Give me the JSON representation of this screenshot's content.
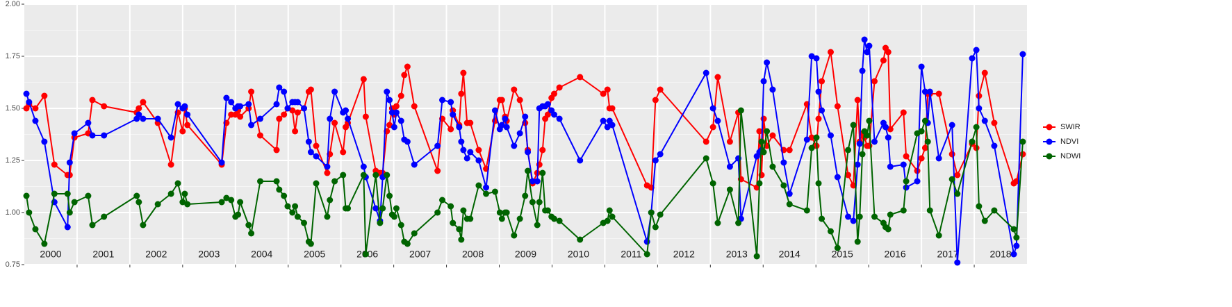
{
  "chart_data": {
    "type": "line",
    "x": [
      2000.04,
      2000.09,
      2000.21,
      2000.38,
      2000.57,
      2000.82,
      2000.86,
      2000.95,
      2001.21,
      2001.29,
      2001.51,
      2002.13,
      2002.17,
      2002.25,
      2002.53,
      2002.78,
      2002.91,
      2003.0,
      2003.04,
      2003.09,
      2003.74,
      2003.83,
      2003.92,
      2004.0,
      2004.05,
      2004.09,
      2004.25,
      2004.3,
      2004.47,
      2004.78,
      2004.83,
      2004.92,
      2004.99,
      2005.08,
      2005.13,
      2005.18,
      2005.3,
      2005.39,
      2005.43,
      2005.53,
      2005.74,
      2005.79,
      2005.88,
      2006.04,
      2006.09,
      2006.13,
      2006.43,
      2006.47,
      2006.66,
      2006.74,
      2006.79,
      2006.87,
      2006.92,
      2006.97,
      2007.01,
      2007.05,
      2007.14,
      2007.2,
      2007.26,
      2007.39,
      2007.83,
      2007.92,
      2008.08,
      2008.12,
      2008.24,
      2008.28,
      2008.32,
      2008.39,
      2008.45,
      2008.61,
      2008.75,
      2008.92,
      2009.01,
      2009.05,
      2009.11,
      2009.14,
      2009.28,
      2009.39,
      2009.49,
      2009.54,
      2009.63,
      2009.72,
      2009.76,
      2009.82,
      2009.87,
      2009.92,
      2009.99,
      2010.04,
      2010.14,
      2010.53,
      2010.97,
      2011.05,
      2011.09,
      2011.14,
      2011.8,
      2011.88,
      2011.96,
      2012.05,
      2012.92,
      2013.05,
      2013.14,
      2013.37,
      2013.53,
      2013.58,
      2013.88,
      2013.93,
      2013.97,
      2014.01,
      2014.07,
      2014.18,
      2014.39,
      2014.5,
      2014.83,
      2014.92,
      2015.01,
      2015.05,
      2015.11,
      2015.28,
      2015.41,
      2015.61,
      2015.71,
      2015.79,
      2015.83,
      2015.88,
      2015.92,
      2015.97,
      2016.01,
      2016.11,
      2016.28,
      2016.32,
      2016.37,
      2016.41,
      2016.66,
      2016.71,
      2016.92,
      2017.0,
      2017.07,
      2017.12,
      2017.16,
      2017.33,
      2017.58,
      2017.68,
      2017.96,
      2018.04,
      2018.09,
      2018.2,
      2018.38,
      2018.75,
      2018.8,
      2018.92
    ],
    "series": [
      {
        "name": "SWIR",
        "color": "#ff0000",
        "values": [
          1.5,
          1.52,
          1.5,
          1.56,
          1.23,
          1.18,
          1.18,
          1.36,
          1.38,
          1.54,
          1.51,
          1.48,
          1.5,
          1.53,
          1.43,
          1.23,
          1.48,
          1.39,
          1.5,
          1.42,
          1.23,
          1.43,
          1.47,
          1.47,
          1.49,
          1.46,
          1.5,
          1.58,
          1.37,
          1.3,
          1.45,
          1.47,
          1.5,
          1.49,
          1.39,
          1.48,
          1.5,
          1.58,
          1.59,
          1.32,
          1.19,
          1.28,
          1.43,
          1.29,
          1.41,
          1.43,
          1.64,
          1.46,
          1.2,
          1.19,
          1.19,
          1.39,
          1.42,
          1.5,
          1.47,
          1.51,
          1.56,
          1.66,
          1.7,
          1.51,
          1.2,
          1.45,
          1.4,
          1.49,
          1.42,
          1.57,
          1.67,
          1.43,
          1.43,
          1.3,
          1.21,
          1.44,
          1.54,
          1.54,
          1.46,
          1.44,
          1.59,
          1.54,
          1.43,
          1.3,
          1.14,
          1.19,
          1.23,
          1.3,
          1.45,
          1.47,
          1.55,
          1.57,
          1.6,
          1.65,
          1.57,
          1.59,
          1.5,
          1.5,
          1.13,
          1.12,
          1.54,
          1.59,
          1.34,
          1.41,
          1.65,
          1.34,
          1.48,
          1.16,
          1.12,
          1.39,
          1.18,
          1.45,
          1.32,
          1.37,
          1.3,
          1.3,
          1.52,
          1.36,
          1.32,
          1.45,
          1.63,
          1.77,
          1.51,
          1.18,
          1.13,
          1.54,
          1.34,
          1.38,
          1.36,
          1.32,
          1.32,
          1.63,
          1.73,
          1.79,
          1.77,
          1.4,
          1.48,
          1.27,
          1.2,
          1.26,
          1.31,
          1.57,
          1.57,
          1.57,
          1.28,
          1.18,
          1.33,
          1.31,
          1.56,
          1.67,
          1.43,
          1.14,
          1.15,
          1.28
        ]
      },
      {
        "name": "NDVI",
        "color": "#0000ff",
        "values": [
          1.57,
          1.53,
          1.44,
          1.34,
          1.05,
          0.93,
          1.24,
          1.38,
          1.43,
          1.37,
          1.37,
          1.45,
          1.47,
          1.45,
          1.45,
          1.36,
          1.52,
          1.5,
          1.51,
          1.47,
          1.24,
          1.55,
          1.53,
          1.5,
          1.51,
          1.51,
          1.52,
          1.42,
          1.45,
          1.52,
          1.6,
          1.58,
          1.5,
          1.53,
          1.53,
          1.53,
          1.5,
          1.34,
          1.29,
          1.27,
          1.22,
          1.45,
          1.58,
          1.48,
          1.49,
          1.45,
          1.22,
          1.17,
          1.02,
          0.96,
          1.17,
          1.58,
          1.54,
          1.48,
          1.41,
          1.48,
          1.44,
          1.35,
          1.34,
          1.23,
          1.32,
          1.54,
          1.53,
          1.47,
          1.41,
          1.34,
          1.3,
          1.26,
          1.29,
          1.25,
          1.12,
          1.49,
          1.4,
          1.42,
          1.45,
          1.41,
          1.32,
          1.38,
          1.46,
          1.29,
          1.15,
          1.15,
          1.5,
          1.51,
          1.51,
          1.52,
          1.49,
          1.47,
          1.45,
          1.25,
          1.44,
          1.41,
          1.44,
          1.42,
          0.86,
          1.0,
          1.25,
          1.28,
          1.67,
          1.5,
          1.44,
          1.22,
          1.26,
          0.97,
          1.27,
          1.29,
          1.3,
          1.63,
          1.72,
          1.59,
          1.24,
          1.09,
          1.35,
          1.75,
          1.74,
          1.58,
          1.49,
          1.37,
          1.17,
          0.98,
          0.96,
          1.23,
          1.33,
          1.68,
          1.83,
          1.77,
          1.8,
          1.34,
          1.43,
          1.41,
          1.36,
          1.22,
          1.23,
          1.12,
          1.15,
          1.7,
          1.58,
          1.43,
          1.58,
          1.26,
          1.42,
          0.76,
          1.74,
          1.78,
          1.5,
          1.44,
          1.32,
          0.8,
          0.84,
          1.76
        ]
      },
      {
        "name": "NDWI",
        "color": "#006400",
        "values": [
          1.08,
          1.0,
          0.92,
          0.85,
          1.09,
          1.09,
          1.0,
          1.05,
          1.08,
          0.94,
          0.98,
          1.08,
          1.05,
          0.94,
          1.04,
          1.09,
          1.14,
          1.05,
          1.09,
          1.04,
          1.05,
          1.07,
          1.06,
          0.98,
          0.99,
          1.05,
          0.94,
          0.9,
          1.15,
          1.15,
          1.11,
          1.08,
          1.03,
          1.0,
          1.03,
          0.98,
          0.95,
          0.86,
          0.85,
          1.14,
          0.98,
          1.06,
          1.15,
          1.18,
          1.02,
          1.02,
          1.18,
          0.8,
          1.18,
          0.95,
          1.02,
          1.18,
          1.08,
          0.99,
          0.98,
          1.02,
          0.94,
          0.86,
          0.85,
          0.9,
          1.0,
          1.06,
          1.03,
          0.95,
          0.92,
          0.87,
          1.01,
          0.97,
          0.97,
          1.13,
          1.09,
          1.1,
          1.0,
          0.97,
          1.0,
          1.0,
          0.89,
          0.97,
          1.08,
          1.2,
          1.05,
          0.94,
          1.05,
          1.19,
          1.01,
          1.01,
          0.98,
          0.97,
          0.96,
          0.87,
          0.95,
          0.96,
          1.01,
          0.98,
          0.8,
          1.0,
          0.93,
          0.99,
          1.26,
          1.14,
          0.95,
          1.11,
          0.95,
          1.49,
          0.79,
          1.14,
          1.34,
          1.29,
          1.39,
          1.22,
          1.13,
          1.04,
          1.01,
          1.31,
          1.36,
          1.14,
          0.97,
          0.91,
          0.83,
          1.3,
          1.42,
          0.86,
          0.98,
          1.28,
          1.39,
          1.37,
          1.44,
          0.98,
          0.95,
          0.93,
          0.92,
          0.99,
          1.01,
          1.15,
          1.38,
          1.39,
          1.44,
          1.34,
          1.01,
          0.89,
          1.16,
          1.09,
          1.34,
          1.41,
          1.03,
          0.96,
          1.01,
          0.92,
          0.88,
          1.34
        ]
      }
    ],
    "xlim": [
      2000,
      2019
    ],
    "xticks": [
      2001,
      2002,
      2003,
      2004,
      2005,
      2006,
      2007,
      2008,
      2009,
      2010,
      2011,
      2012,
      2013,
      2014,
      2015,
      2016,
      2017,
      2018
    ],
    "year_labels": [
      {
        "value": 2000.5,
        "label": "2000"
      },
      {
        "value": 2001.5,
        "label": "2001"
      },
      {
        "value": 2002.5,
        "label": "2002"
      },
      {
        "value": 2003.5,
        "label": "2003"
      },
      {
        "value": 2004.5,
        "label": "2004"
      },
      {
        "value": 2005.5,
        "label": "2005"
      },
      {
        "value": 2006.5,
        "label": "2006"
      },
      {
        "value": 2007.5,
        "label": "2007"
      },
      {
        "value": 2008.5,
        "label": "2008"
      },
      {
        "value": 2009.5,
        "label": "2009"
      },
      {
        "value": 2010.5,
        "label": "2010"
      },
      {
        "value": 2011.5,
        "label": "2011"
      },
      {
        "value": 2012.5,
        "label": "2012"
      },
      {
        "value": 2013.5,
        "label": "2013"
      },
      {
        "value": 2014.5,
        "label": "2014"
      },
      {
        "value": 2015.5,
        "label": "2015"
      },
      {
        "value": 2016.5,
        "label": "2016"
      },
      {
        "value": 2017.5,
        "label": "2017"
      },
      {
        "value": 2018.5,
        "label": "2018"
      }
    ],
    "ylim": [
      0.75,
      2.0
    ],
    "yticks": [
      {
        "value": 0.75,
        "label": "0.75"
      },
      {
        "value": 1.0,
        "label": "1.00"
      },
      {
        "value": 1.25,
        "label": "1.25"
      },
      {
        "value": 1.5,
        "label": "1.50"
      },
      {
        "value": 1.75,
        "label": "1.75"
      },
      {
        "value": 2.0,
        "label": "2.00"
      }
    ],
    "grid": true,
    "legend": "right"
  }
}
